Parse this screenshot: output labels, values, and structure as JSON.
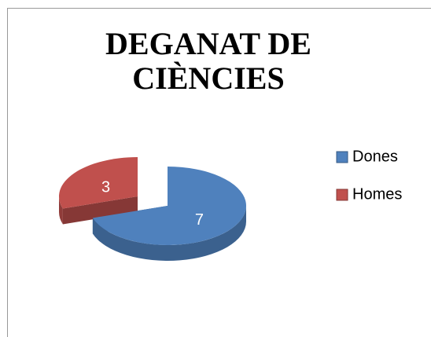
{
  "chart_data": {
    "type": "pie",
    "title": "DEGANAT DE CIÈNCIES",
    "categories": [
      "Dones",
      "Homes"
    ],
    "values": [
      7,
      3
    ],
    "colors": [
      "#4f81bd",
      "#c0504d"
    ],
    "legend": "right"
  }
}
